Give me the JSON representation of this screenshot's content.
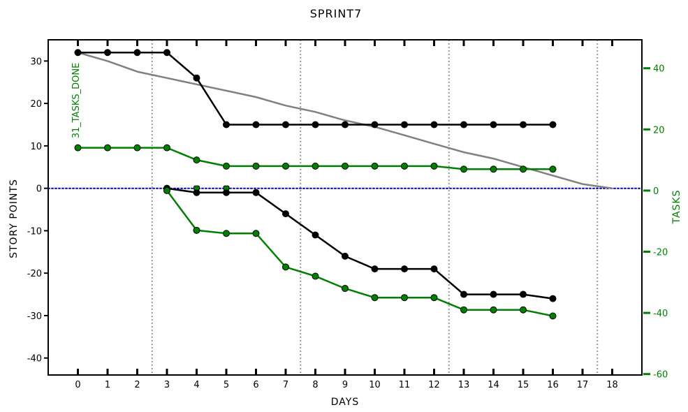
{
  "chart_data": {
    "type": "line",
    "title": "SPRINT7",
    "xlabel": "DAYS",
    "ylabel": "STORY POINTS",
    "y2label": "TASKS",
    "xlim": [
      -1,
      19
    ],
    "ylim": [
      -44,
      35
    ],
    "y2lim": [
      -60.3,
      49.3
    ],
    "x_ticks": [
      0,
      1,
      2,
      3,
      4,
      5,
      6,
      7,
      8,
      9,
      10,
      11,
      12,
      13,
      14,
      15,
      16,
      17,
      18
    ],
    "y_ticks": [
      30,
      20,
      10,
      0,
      -10,
      -20,
      -30,
      -40
    ],
    "y2_ticks": [
      40,
      20,
      0,
      -20,
      -40,
      -60
    ],
    "week_separators": [
      2.5,
      7.5,
      12.5,
      17.5
    ],
    "grid": false,
    "annotation": "31_TASKS_DONE",
    "colors": {
      "story_points": "#000000",
      "tasks": "#008000",
      "ideal": "#808080",
      "zero_line": "#0000cc",
      "separator": "#999999"
    },
    "series": [
      {
        "axis": "left",
        "color": "#000000",
        "x": [
          0,
          1,
          2,
          3,
          4,
          5,
          6,
          7,
          8,
          9,
          10,
          11,
          12,
          13,
          14,
          15,
          16
        ],
        "values": [
          32,
          32,
          32,
          32,
          26,
          15,
          15,
          15,
          15,
          15,
          15,
          15,
          15,
          15,
          15,
          15,
          15
        ]
      },
      {
        "axis": "right",
        "color": "#008000",
        "x": [
          0,
          1,
          2,
          3,
          4,
          5,
          6,
          7,
          8,
          9,
          10,
          11,
          12,
          13,
          14,
          15,
          16
        ],
        "values": [
          14,
          14,
          14,
          14,
          10,
          8,
          8,
          8,
          8,
          8,
          8,
          8,
          8,
          7,
          7,
          7,
          7
        ]
      },
      {
        "axis": "left",
        "color": "#000000",
        "x": [
          3,
          4,
          5,
          6,
          7,
          8,
          9,
          10,
          11,
          12,
          13,
          14,
          15,
          16
        ],
        "values": [
          0,
          -1,
          -1,
          -1,
          -6,
          -11,
          -16,
          -19,
          -19,
          -19,
          -25,
          -25,
          -25,
          -26
        ]
      },
      {
        "axis": "right",
        "color": "#008000",
        "x": [
          3,
          4,
          5,
          6,
          7,
          8,
          9,
          10,
          11,
          12,
          13,
          14,
          15,
          16
        ],
        "values": [
          0,
          -13,
          -14,
          -14,
          -25,
          -28,
          -32,
          -35,
          -35,
          -35,
          -39,
          -39,
          -39,
          -41
        ]
      },
      {
        "axis": "left",
        "color": "#808080",
        "x": [
          0,
          1,
          2,
          3,
          4,
          5,
          6,
          7,
          8,
          9,
          10,
          11,
          12,
          13,
          14,
          15,
          16,
          17,
          18
        ],
        "values": [
          32,
          30,
          27.5,
          26,
          24.5,
          23,
          21.5,
          19.5,
          18,
          16,
          14.5,
          12.5,
          10.5,
          8.5,
          7,
          5,
          3,
          1,
          0
        ]
      },
      {
        "axis": "left",
        "color": "#0000cc",
        "x": [
          -1,
          19
        ],
        "values": [
          0,
          0
        ]
      }
    ],
    "markers_at_zero": [
      4,
      5
    ]
  }
}
